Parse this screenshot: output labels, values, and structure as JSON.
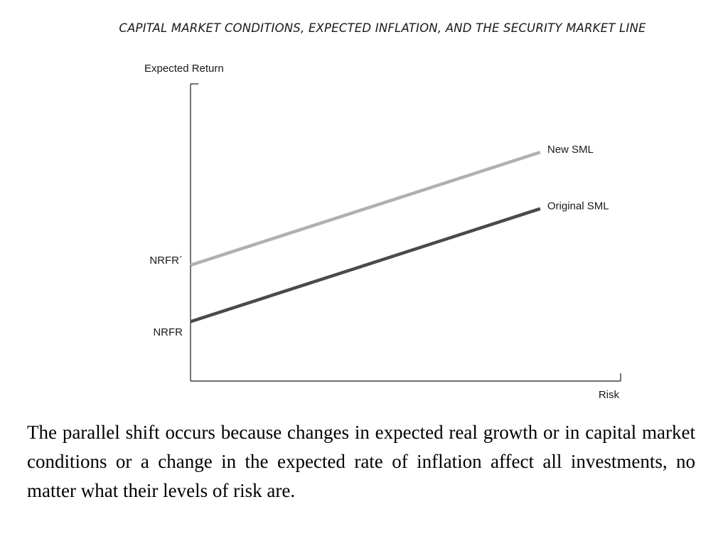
{
  "chart_data": {
    "type": "line",
    "title": "CAPITAL MARKET CONDITIONS, EXPECTED INFLATION, AND THE SECURITY MARKET LINE",
    "xlabel": "Risk",
    "ylabel": "Expected Return",
    "ytick_labels": [
      "NRFR",
      "NRFR´"
    ],
    "series": [
      {
        "name": "Original SML",
        "color": "#4a4a4a",
        "x": [
          0,
          1
        ],
        "y": [
          0.2,
          0.58
        ]
      },
      {
        "name": "New SML",
        "color": "#b0b0b0",
        "x": [
          0,
          1
        ],
        "y": [
          0.39,
          0.77
        ]
      }
    ],
    "xlim": [
      0,
      1.23
    ],
    "ylim": [
      0,
      1
    ],
    "grid": false,
    "legend": "none"
  },
  "caption": "The parallel shift occurs because changes in expected real growth or in capital market conditions or a change in the expected rate of inflation affect all investments, no matter what their levels of risk are."
}
